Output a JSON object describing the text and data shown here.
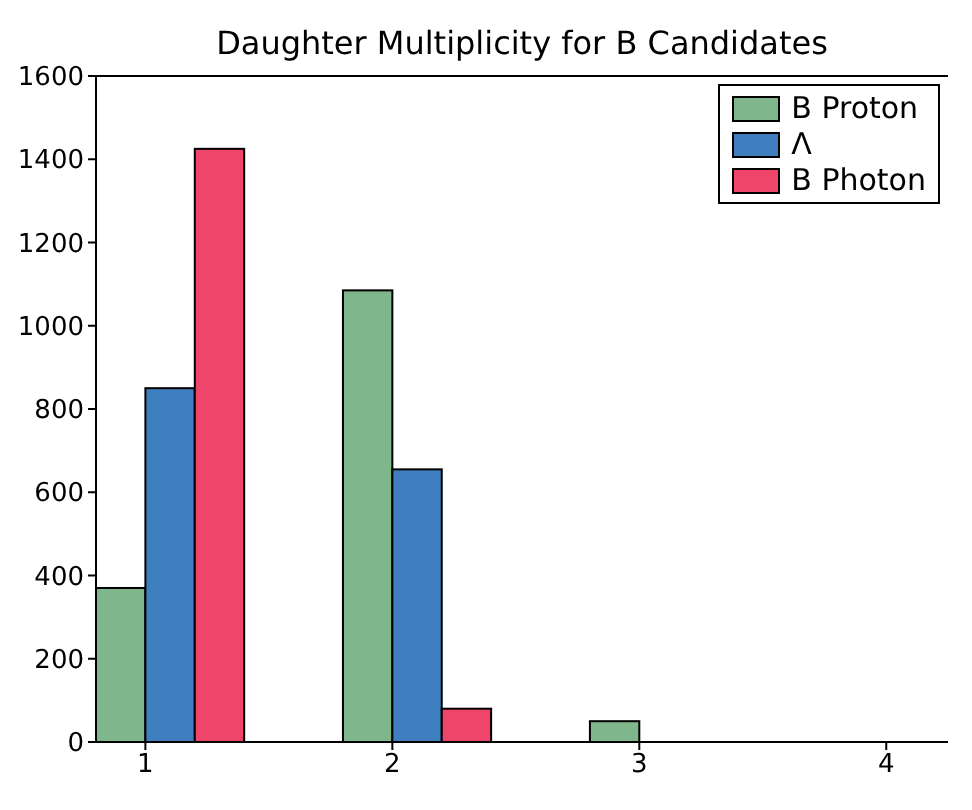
{
  "chart_data": {
    "type": "bar",
    "title": "Daughter Multiplicity for B Candidates",
    "x": [
      1,
      2,
      3,
      4
    ],
    "series": [
      {
        "name": "B Proton",
        "color": "#80b68c",
        "values": [
          370,
          1085,
          50,
          0
        ]
      },
      {
        "name": "Λ",
        "color": "#3f7fc0",
        "values": [
          850,
          655,
          null,
          null
        ]
      },
      {
        "name": "B Photon",
        "color": "#f0456a",
        "values": [
          1425,
          80,
          null,
          null
        ]
      }
    ],
    "xlim": [
      0.8,
      4.25
    ],
    "xticks": [
      1,
      2,
      3,
      4
    ],
    "ylim": [
      0,
      1600
    ],
    "yticks": [
      0,
      200,
      400,
      600,
      800,
      1000,
      1200,
      1400,
      1600
    ],
    "grid": false,
    "legend": "top right"
  }
}
